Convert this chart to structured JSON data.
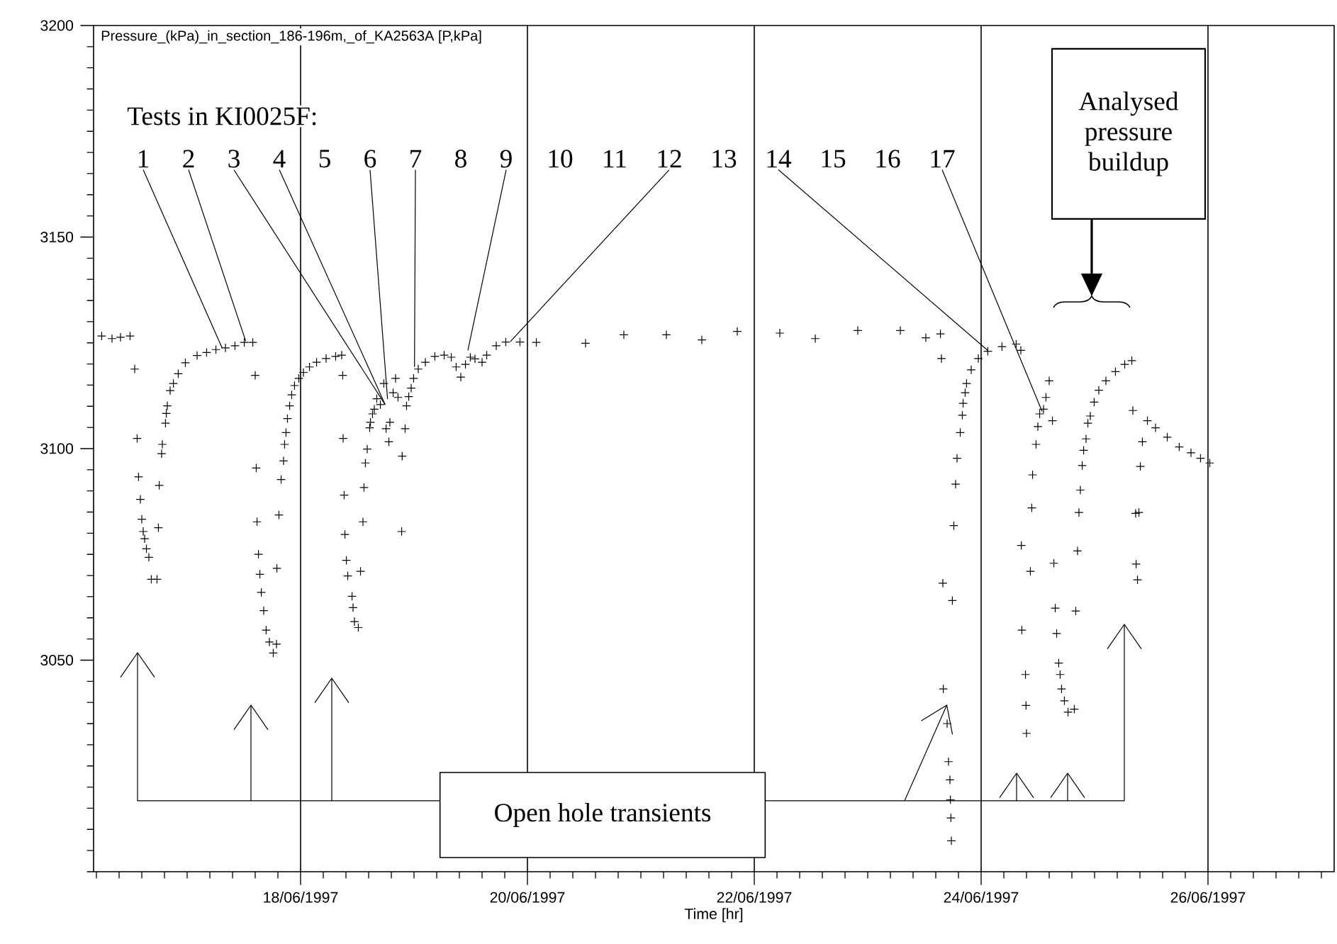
{
  "chart_data": {
    "type": "scatter",
    "title": "Pressure_(kPa)_in_section_186-196m,_of_KA2563A [P,kPa]",
    "xlabel": "Time [hr]",
    "color": "#000000",
    "marker": "cross",
    "grid": "x",
    "xlim": [
      "1997-06-16T04:12",
      "1997-06-27T02:42"
    ],
    "ylim": [
      3000,
      3200
    ],
    "xticks": [
      {
        "value": "1997-06-18",
        "label": "18/06/1997"
      },
      {
        "value": "1997-06-20",
        "label": "20/06/1997"
      },
      {
        "value": "1997-06-22",
        "label": "22/06/1997"
      },
      {
        "value": "1997-06-24",
        "label": "24/06/1997"
      },
      {
        "value": "1997-06-26",
        "label": "26/06/1997"
      }
    ],
    "yticks": [
      3050,
      3100,
      3150,
      3200
    ],
    "x": [
      "1997-06-16T05:55",
      "1997-06-16T08:06",
      "1997-06-16T09:54",
      "1997-06-16T11:55",
      "1997-06-16T12:54",
      "1997-06-16T13:25",
      "1997-06-16T13:43",
      "1997-06-16T14:06",
      "1997-06-16T14:24",
      "1997-06-16T14:42",
      "1997-06-16T15:00",
      "1997-06-16T15:23",
      "1997-06-16T15:54",
      "1997-06-16T16:25",
      "1997-06-16T17:37",
      "1997-06-16T17:55",
      "1997-06-16T18:05",
      "1997-06-16T18:36",
      "1997-06-16T18:45",
      "1997-06-16T19:25",
      "1997-06-16T19:35",
      "1997-06-16T19:48",
      "1997-06-16T20:24",
      "1997-06-16T21:05",
      "1997-06-16T22:07",
      "1997-06-16T23:37",
      "1997-06-17T02:06",
      "1997-06-17T04:07",
      "1997-06-17T06:05",
      "1997-06-17T08:06",
      "1997-06-17T10:07",
      "1997-06-17T12:05",
      "1997-06-17T13:53",
      "1997-06-17T14:24",
      "1997-06-17T14:37",
      "1997-06-17T14:47",
      "1997-06-17T15:05",
      "1997-06-17T15:23",
      "1997-06-17T15:41",
      "1997-06-17T16:12",
      "1997-06-17T16:43",
      "1997-06-17T17:24",
      "1997-06-17T18:13",
      "1997-06-17T18:54",
      "1997-06-17T18:59",
      "1997-06-17T19:25",
      "1997-06-17T19:53",
      "1997-06-17T20:24",
      "1997-06-17T20:37",
      "1997-06-17T20:55",
      "1997-06-17T21:13",
      "1997-06-17T21:41",
      "1997-06-17T22:07",
      "1997-06-17T22:43",
      "1997-06-17T23:37",
      "1997-06-18T00:36",
      "1997-06-18T01:53",
      "1997-06-18T03:23",
      "1997-06-18T05:24",
      "1997-06-18T07:25",
      "1997-06-18T08:42",
      "1997-06-18T08:55",
      "1997-06-18T09:00",
      "1997-06-18T09:13",
      "1997-06-18T09:23",
      "1997-06-18T09:41",
      "1997-06-18T09:59",
      "1997-06-18T10:53",
      "1997-06-18T11:06",
      "1997-06-18T11:24",
      "1997-06-18T12:13",
      "1997-06-18T12:41",
      "1997-06-18T13:12",
      "1997-06-18T13:25",
      "1997-06-18T13:43",
      "1997-06-18T14:06",
      "1997-06-18T14:37",
      "1997-06-18T14:47",
      "1997-06-18T15:13",
      "1997-06-18T15:36",
      "1997-06-18T16:07",
      "1997-06-18T16:53",
      "1997-06-18T17:37",
      "1997-06-18T18:05",
      "1997-06-18T18:41",
      "1997-06-18T18:54",
      "1997-06-18T19:35",
      "1997-06-18T20:06",
      "1997-06-18T20:37",
      "1997-06-18T21:23",
      "1997-06-18T21:30",
      "1997-06-18T22:07",
      "1997-06-18T22:25",
      "1997-06-18T22:53",
      "1997-06-18T23:24",
      "1997-06-18T23:55",
      "1997-06-19T00:54",
      "1997-06-19T02:24",
      "1997-06-19T04:25",
      "1997-06-19T06:23",
      "1997-06-19T07:53",
      "1997-06-19T08:55",
      "1997-06-19T09:54",
      "1997-06-19T10:53",
      "1997-06-19T11:55",
      "1997-06-19T12:54",
      "1997-06-19T14:24",
      "1997-06-19T15:23",
      "1997-06-19T17:24",
      "1997-06-19T19:25",
      "1997-06-19T22:25",
      "1997-06-20T01:53",
      "1997-06-20T12:18",
      "1997-06-20T20:24",
      "1997-06-21T05:24",
      "1997-06-21T12:54",
      "1997-06-21T20:24",
      "1997-06-22T05:24",
      "1997-06-22T12:54",
      "1997-06-22T21:54",
      "1997-06-23T06:54",
      "1997-06-23T12:18",
      "1997-06-23T15:23",
      "1997-06-23T15:36",
      "1997-06-23T15:54",
      "1997-06-23T16:00",
      "1997-06-23T16:48",
      "1997-06-23T17:06",
      "1997-06-23T17:24",
      "1997-06-23T17:30",
      "1997-06-23T17:36",
      "1997-06-23T17:42",
      "1997-06-23T17:55",
      "1997-06-23T18:13",
      "1997-06-23T18:36",
      "1997-06-23T18:54",
      "1997-06-23T19:35",
      "1997-06-23T20:01",
      "1997-06-23T20:11",
      "1997-06-23T20:37",
      "1997-06-23T20:55",
      "1997-06-23T21:54",
      "1997-06-23T23:24",
      "1997-06-24T01:25",
      "1997-06-24T04:25",
      "1997-06-24T07:25",
      "1997-06-24T08:24",
      "1997-06-24T08:30",
      "1997-06-24T08:37",
      "1997-06-24T09:23",
      "1997-06-24T09:30",
      "1997-06-24T09:36",
      "1997-06-24T10:25",
      "1997-06-24T10:43",
      "1997-06-24T10:53",
      "1997-06-24T11:37",
      "1997-06-24T12:00",
      "1997-06-24T12:23",
      "1997-06-24T13:12",
      "1997-06-24T13:43",
      "1997-06-24T14:24",
      "1997-06-24T15:05",
      "1997-06-24T15:23",
      "1997-06-24T15:41",
      "1997-06-24T15:59",
      "1997-06-24T16:25",
      "1997-06-24T16:43",
      "1997-06-24T17:01",
      "1997-06-24T17:37",
      "1997-06-24T18:23",
      "1997-06-24T19:43",
      "1997-06-24T20:01",
      "1997-06-24T20:24",
      "1997-06-24T20:42",
      "1997-06-24T21:00",
      "1997-06-24T21:23",
      "1997-06-24T21:41",
      "1997-06-24T22:12",
      "1997-06-24T22:35",
      "1997-06-24T23:06",
      "1997-06-24T23:55",
      "1997-06-25T00:54",
      "1997-06-25T02:24",
      "1997-06-25T04:25",
      "1997-06-25T06:23",
      "1997-06-25T07:53",
      "1997-06-25T08:06",
      "1997-06-25T08:42",
      "1997-06-25T08:48",
      "1997-06-25T09:05",
      "1997-06-25T09:23",
      "1997-06-25T09:41",
      "1997-06-25T10:07",
      "1997-06-25T11:11",
      "1997-06-25T12:54",
      "1997-06-25T15:23",
      "1997-06-25T17:55",
      "1997-06-25T20:24",
      "1997-06-25T22:25",
      "1997-06-26T00:23"
    ],
    "values": [
      3126.6,
      3126.0,
      3126.3,
      3126.6,
      3118.8,
      3102.4,
      3093.3,
      3088.0,
      3083.3,
      3080.4,
      3078.7,
      3076.3,
      3074.3,
      3069.1,
      3069.1,
      3081.3,
      3091.3,
      3098.8,
      3101.0,
      3106.0,
      3108.3,
      3110.1,
      3113.7,
      3115.4,
      3117.7,
      3120.3,
      3122.0,
      3122.7,
      3123.4,
      3123.8,
      3124.3,
      3125.1,
      3125.1,
      3117.3,
      3095.4,
      3082.7,
      3075.0,
      3070.3,
      3066.0,
      3061.7,
      3057.1,
      3054.3,
      3051.7,
      3053.8,
      3071.7,
      3084.3,
      3092.7,
      3097.1,
      3101.0,
      3103.8,
      3107.1,
      3110.1,
      3112.7,
      3114.9,
      3116.6,
      3118.0,
      3119.3,
      3120.4,
      3121.3,
      3121.8,
      3122.1,
      3117.3,
      3102.4,
      3089.0,
      3079.7,
      3073.6,
      3069.9,
      3065.1,
      3062.4,
      3059.1,
      3057.7,
      3071.0,
      3082.7,
      3090.8,
      3096.6,
      3099.9,
      3104.9,
      3106.2,
      3108.2,
      3109.3,
      3111.8,
      3110.4,
      3115.4,
      3104.7,
      3101.6,
      3106.2,
      3113.2,
      3116.6,
      3112.1,
      3080.4,
      3098.2,
      3104.7,
      3110.1,
      3112.3,
      3114.3,
      3116.6,
      3118.8,
      3120.4,
      3121.8,
      3122.1,
      3121.6,
      3119.3,
      3116.9,
      3119.9,
      3121.6,
      3121.2,
      3120.4,
      3122.1,
      3124.3,
      3125.2,
      3125.2,
      3125.1,
      3124.9,
      3126.9,
      3126.9,
      3125.7,
      3127.7,
      3127.3,
      3126.0,
      3127.9,
      3127.9,
      3126.2,
      3127.1,
      3121.3,
      3068.2,
      3043.2,
      3035.0,
      3026.0,
      3021.7,
      3017.0,
      3012.7,
      3007.3,
      3064.1,
      3081.8,
      3091.6,
      3097.7,
      3103.8,
      3107.9,
      3110.7,
      3113.2,
      3115.4,
      3118.6,
      3121.3,
      3123.0,
      3124.1,
      3124.7,
      3123.2,
      3077.1,
      3057.1,
      3046.6,
      3039.3,
      3032.7,
      3071.0,
      3086.0,
      3093.8,
      3101.0,
      3105.2,
      3108.2,
      3109.3,
      3112.1,
      3116.0,
      3106.6,
      3072.9,
      3062.3,
      3056.3,
      3049.3,
      3046.6,
      3043.2,
      3040.4,
      3037.7,
      3038.4,
      3061.6,
      3075.8,
      3084.9,
      3090.2,
      3096.0,
      3099.6,
      3102.3,
      3106.0,
      3107.7,
      3111.0,
      3113.8,
      3116.0,
      3118.2,
      3119.9,
      3120.8,
      3109.0,
      3084.7,
      3072.7,
      3069.0,
      3084.9,
      3095.8,
      3101.6,
      3106.6,
      3104.9,
      3102.7,
      3100.4,
      3099.0,
      3097.7,
      3096.6
    ],
    "annotations": [
      "Tests in KI0025F:",
      {
        "text": "1",
        "x": "1997-06-17T07:24",
        "y": 3123.8
      },
      {
        "text": "2",
        "x": "1997-06-17T12:24",
        "y": 3125.4
      },
      {
        "text": "3",
        "x": "1997-06-18T17:54",
        "y": 3110.4
      },
      {
        "text": "4",
        "x": "1997-06-18T17:54",
        "y": 3110.4
      },
      "5",
      {
        "text": "6",
        "x": "1997-06-18T18:24",
        "y": 3111.7
      },
      {
        "text": "7",
        "x": "1997-06-19T00:06",
        "y": 3119.3
      },
      "8",
      {
        "text": "9",
        "x": "1997-06-19T11:24",
        "y": 3123.2
      },
      "10",
      "11",
      {
        "text": "12",
        "x": "1997-06-19T20:24",
        "y": 3125.3
      },
      "13",
      {
        "text": "14",
        "x": "1997-06-24T01:24",
        "y": 3123.2
      },
      "15",
      "16",
      {
        "text": "17",
        "x": "1997-06-24T12:54",
        "y": 3108.8
      },
      "Analysed pressure buildup",
      "Open hole transients"
    ]
  }
}
